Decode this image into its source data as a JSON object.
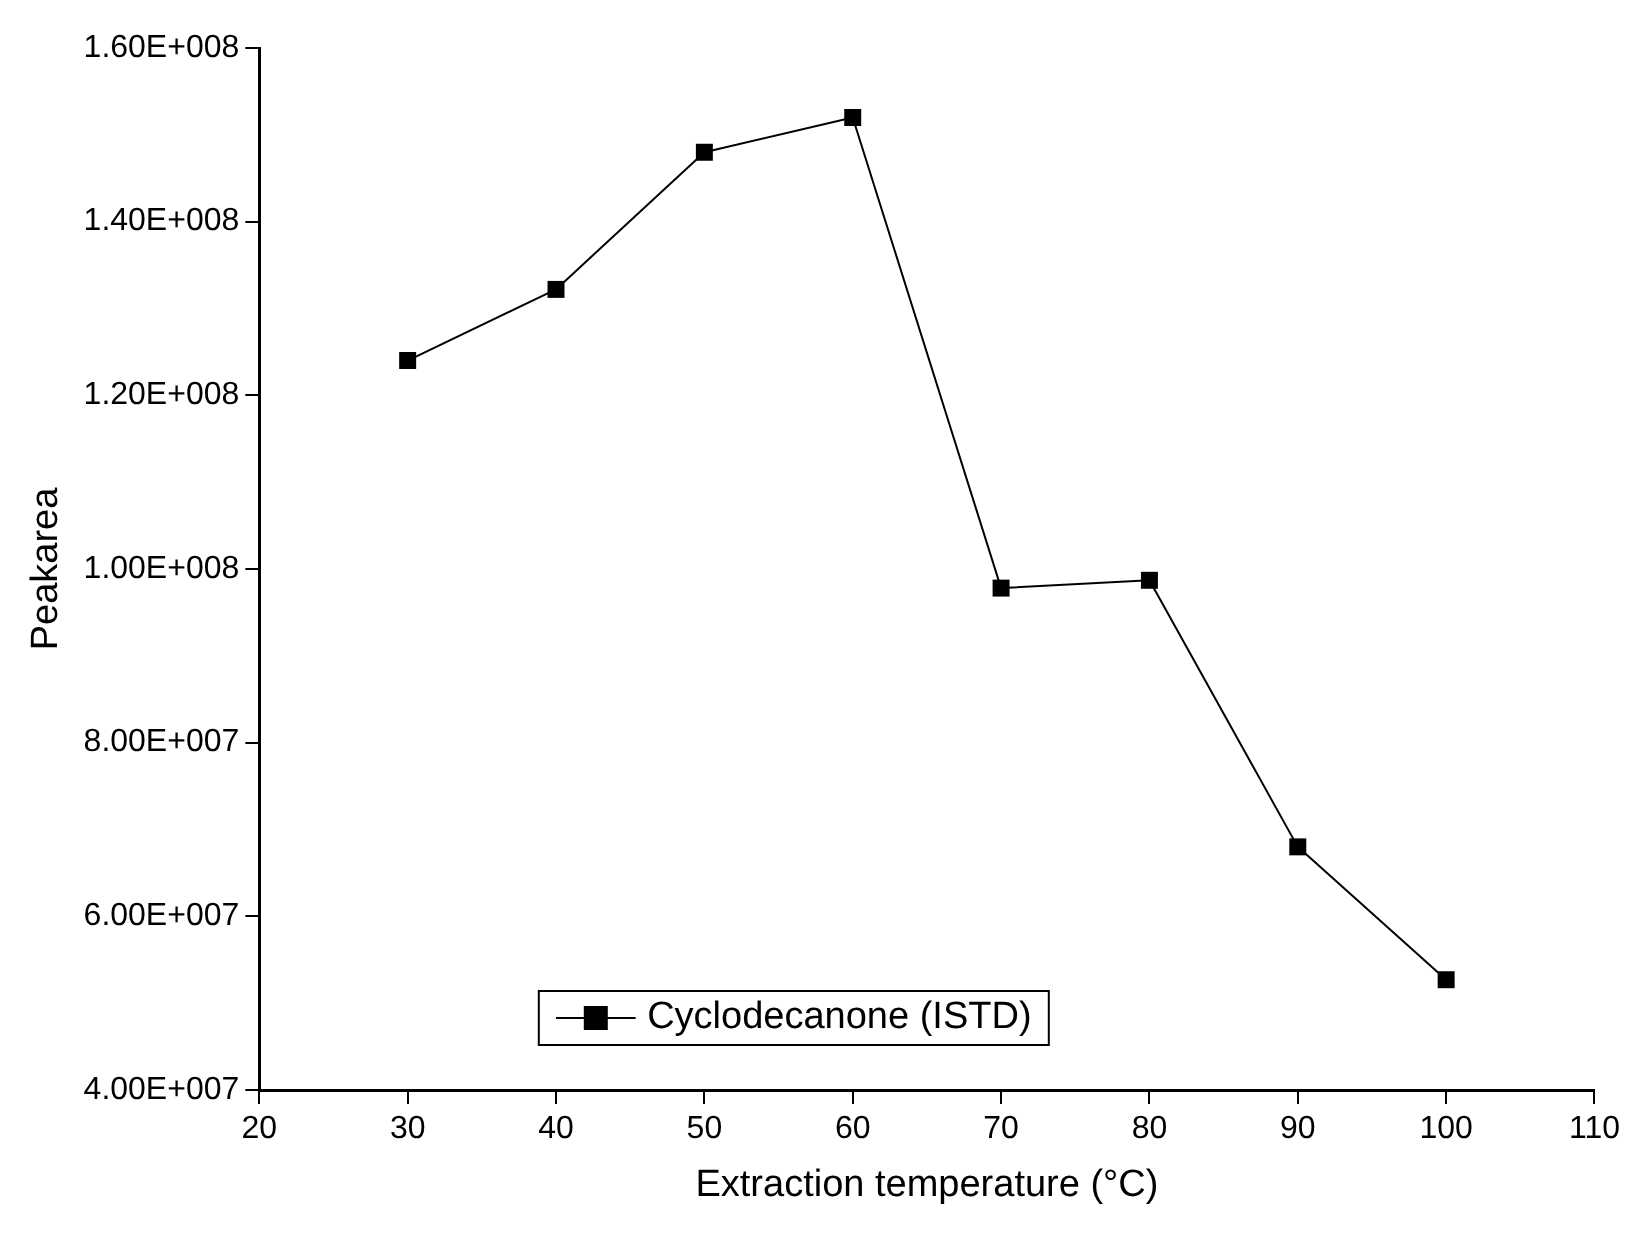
{
  "chart_data": {
    "type": "line",
    "xlabel": "Extraction temperature (°C)",
    "ylabel": "Peakarea",
    "x": [
      30,
      40,
      50,
      60,
      70,
      80,
      90,
      100
    ],
    "series": [
      {
        "name": "Cyclodecanone (ISTD)",
        "color": "#000000",
        "values": [
          124000000,
          132200000,
          148000000,
          152000000,
          97800000,
          98700000,
          68000000,
          52700000
        ]
      }
    ],
    "xlim": [
      20,
      110
    ],
    "xticks": [
      20,
      30,
      40,
      50,
      60,
      70,
      80,
      90,
      100,
      110
    ],
    "ylim": [
      40000000,
      160000000
    ],
    "yticks": [
      {
        "value": 40000000,
        "label": "4.00E+007"
      },
      {
        "value": 60000000,
        "label": "6.00E+007"
      },
      {
        "value": 80000000,
        "label": "8.00E+007"
      },
      {
        "value": 100000000,
        "label": "1.00E+008"
      },
      {
        "value": 120000000,
        "label": "1.20E+008"
      },
      {
        "value": 140000000,
        "label": "1.40E+008"
      },
      {
        "value": 160000000,
        "label": "1.60E+008"
      }
    ],
    "grid": false,
    "legend": "bottom",
    "marker": "square",
    "line_style": "solid"
  }
}
